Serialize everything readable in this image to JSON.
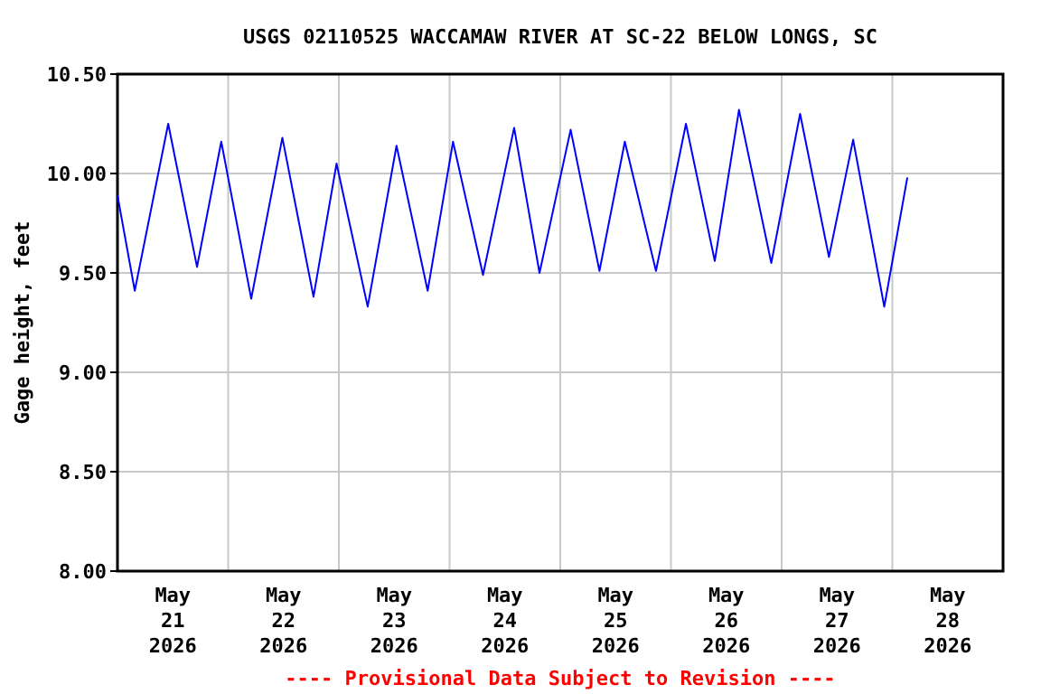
{
  "chart_data": {
    "type": "line",
    "title": "USGS 02110525 WACCAMAW RIVER AT SC-22 BELOW LONGS, SC",
    "ylabel": "Gage height, feet",
    "annotations": [
      "---- Provisional Data Subject to Revision ----"
    ],
    "x": [
      "2026-05-21T00:00",
      "2026-05-21T03:45",
      "2026-05-21T11:00",
      "2026-05-21T17:15",
      "2026-05-21T22:30",
      "2026-05-22T05:00",
      "2026-05-22T11:45",
      "2026-05-22T18:30",
      "2026-05-22T23:30",
      "2026-05-23T06:15",
      "2026-05-23T12:30",
      "2026-05-23T19:15",
      "2026-05-24T00:45",
      "2026-05-24T07:15",
      "2026-05-24T14:00",
      "2026-05-24T19:30",
      "2026-05-25T02:15",
      "2026-05-25T08:30",
      "2026-05-25T14:00",
      "2026-05-25T20:45",
      "2026-05-26T03:15",
      "2026-05-26T09:30",
      "2026-05-26T14:45",
      "2026-05-26T21:45",
      "2026-05-27T04:00",
      "2026-05-27T10:15",
      "2026-05-27T15:30",
      "2026-05-27T22:15",
      "2026-05-28T03:15"
    ],
    "series": [
      {
        "color": "#0000ff",
        "values": [
          9.89,
          9.41,
          10.25,
          9.53,
          10.16,
          9.37,
          10.18,
          9.38,
          10.05,
          9.33,
          10.14,
          9.41,
          10.16,
          9.49,
          10.23,
          9.5,
          10.22,
          9.51,
          10.16,
          9.51,
          10.25,
          9.56,
          10.32,
          9.55,
          10.3,
          9.58,
          10.17,
          9.33,
          9.98
        ]
      }
    ],
    "xlim": [
      "2026-05-21T00:00",
      "2026-05-29T00:00"
    ],
    "xticks": [
      {
        "value": "2026-05-21T12:00",
        "label": "May\n21\n2026"
      },
      {
        "value": "2026-05-22T12:00",
        "label": "May\n22\n2026"
      },
      {
        "value": "2026-05-23T12:00",
        "label": "May\n23\n2026"
      },
      {
        "value": "2026-05-24T12:00",
        "label": "May\n24\n2026"
      },
      {
        "value": "2026-05-25T12:00",
        "label": "May\n25\n2026"
      },
      {
        "value": "2026-05-26T12:00",
        "label": "May\n26\n2026"
      },
      {
        "value": "2026-05-27T12:00",
        "label": "May\n27\n2026"
      },
      {
        "value": "2026-05-28T12:00",
        "label": "May\n28\n2026"
      },
      {
        "value": "2026-05-22T00:00",
        "label": null
      },
      {
        "value": "2026-05-23T00:00",
        "label": null
      },
      {
        "value": "2026-05-24T00:00",
        "label": null
      },
      {
        "value": "2026-05-25T00:00",
        "label": null
      },
      {
        "value": "2026-05-26T00:00",
        "label": null
      },
      {
        "value": "2026-05-27T00:00",
        "label": null
      },
      {
        "value": "2026-05-28T00:00",
        "label": null
      }
    ],
    "ylim": [
      8,
      10.5
    ],
    "yticks": [
      {
        "value": 8,
        "label": "8.00"
      },
      {
        "value": 8.5,
        "label": "8.50"
      },
      {
        "value": 9,
        "label": "9.00"
      },
      {
        "value": 9.5,
        "label": "9.50"
      },
      {
        "value": 10,
        "label": "10.00"
      },
      {
        "value": 10.5,
        "label": "10.50"
      }
    ],
    "grid": true,
    "marker": "none",
    "line_style": "solid"
  }
}
